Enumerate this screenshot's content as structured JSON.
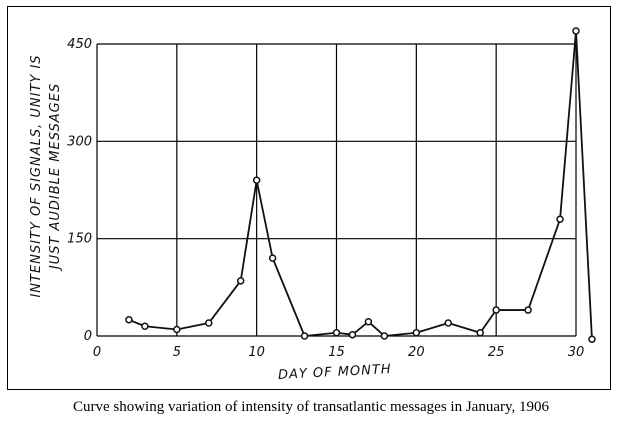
{
  "caption": "Curve showing variation of intensity of transatlantic messages in January, 1906",
  "chart_data": {
    "type": "line",
    "title": "",
    "xlabel": "DAY OF MONTH",
    "ylabel_line1": "INTENSITY OF SIGNALS, UNITY IS",
    "ylabel_line2": "JUST AUDIBLE MESSAGES",
    "xlim": [
      0,
      30
    ],
    "ylim": [
      0,
      450
    ],
    "xticks": [
      0,
      5,
      10,
      15,
      20,
      25,
      30
    ],
    "yticks": [
      0,
      150,
      300,
      450
    ],
    "grid": true,
    "series": [
      {
        "x": [
          2,
          3,
          5,
          7,
          9,
          10,
          11,
          13,
          15,
          16,
          17,
          18,
          20,
          22,
          24,
          25,
          27,
          29,
          30,
          31
        ],
        "y": [
          25,
          15,
          10,
          20,
          85,
          240,
          120,
          0,
          5,
          2,
          22,
          0,
          5,
          20,
          5,
          40,
          40,
          180,
          470,
          -5
        ]
      }
    ],
    "colors": {
      "line": "#111111",
      "grid": "#000000",
      "marker_fill": "#ffffff"
    }
  }
}
